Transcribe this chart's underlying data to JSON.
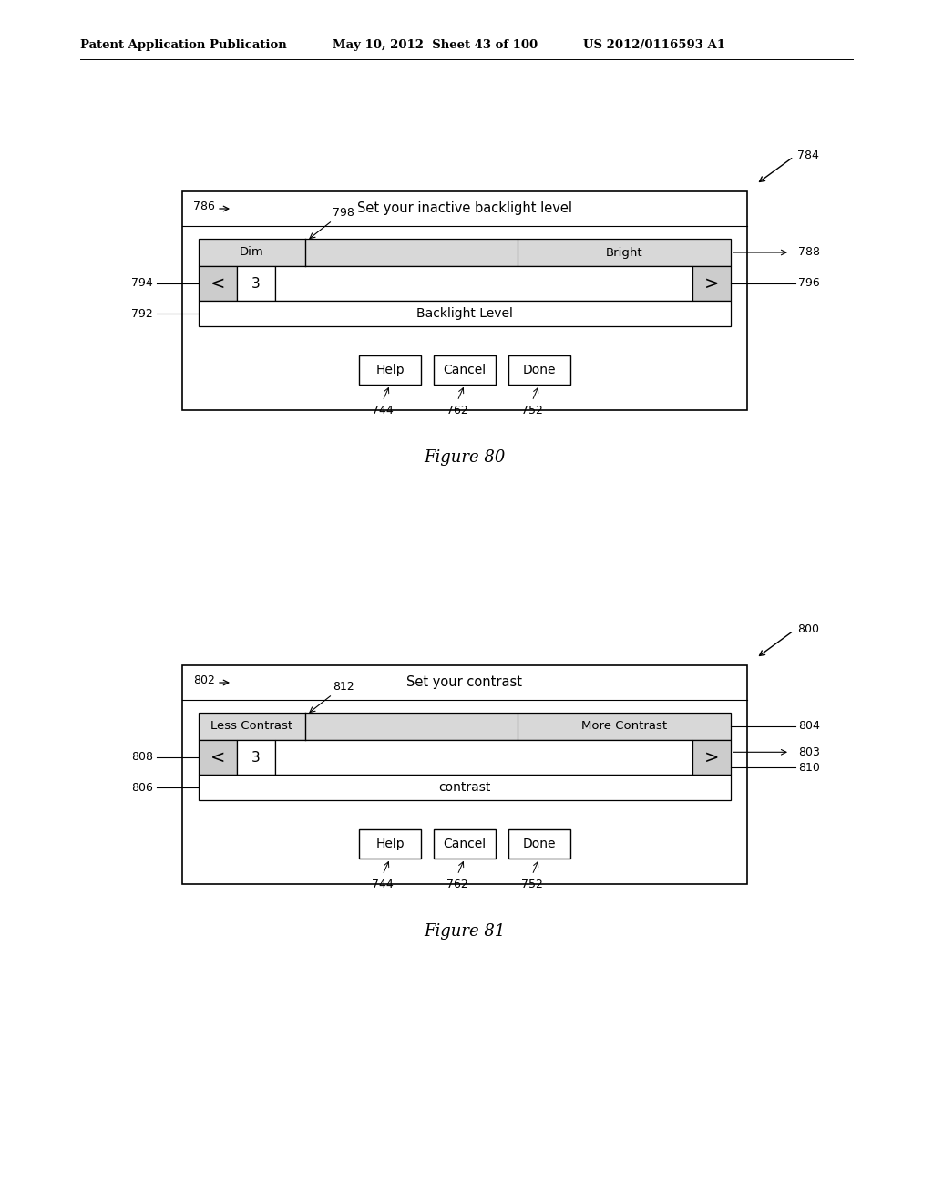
{
  "bg_color": "#ffffff",
  "header_left": "Patent Application Publication",
  "header_mid": "May 10, 2012  Sheet 43 of 100",
  "header_right": "US 2012/0116593 A1",
  "fig80": {
    "label": "784",
    "title_text": "Set your inactive backlight level",
    "title_label": "786",
    "slider_top_left": "Dim",
    "slider_top_right": "Bright",
    "slider_value": "3",
    "slider_notch_label": "798",
    "label_right_top": "788",
    "label_right_bot": "796",
    "label_left_top": "794",
    "bottom_bar_text": "Backlight Level",
    "label_left_bot": "792",
    "btn_labels": [
      "Help",
      "Cancel",
      "Done"
    ],
    "btn_ref_labels": [
      "744",
      "762",
      "752"
    ],
    "figure_caption": "Figure 80"
  },
  "fig81": {
    "label": "800",
    "title_text": "Set your contrast",
    "title_label": "802",
    "slider_top_left": "Less Contrast",
    "slider_top_right": "More Contrast",
    "slider_value": "3",
    "slider_notch_label": "812",
    "label_right_top": "804",
    "label_right_arrow": "803",
    "label_right_bot": "810",
    "label_left_top": "808",
    "bottom_bar_text": "contrast",
    "label_left_bot": "806",
    "btn_labels": [
      "Help",
      "Cancel",
      "Done"
    ],
    "btn_ref_labels": [
      "744",
      "762",
      "752"
    ],
    "figure_caption": "Figure 81"
  }
}
